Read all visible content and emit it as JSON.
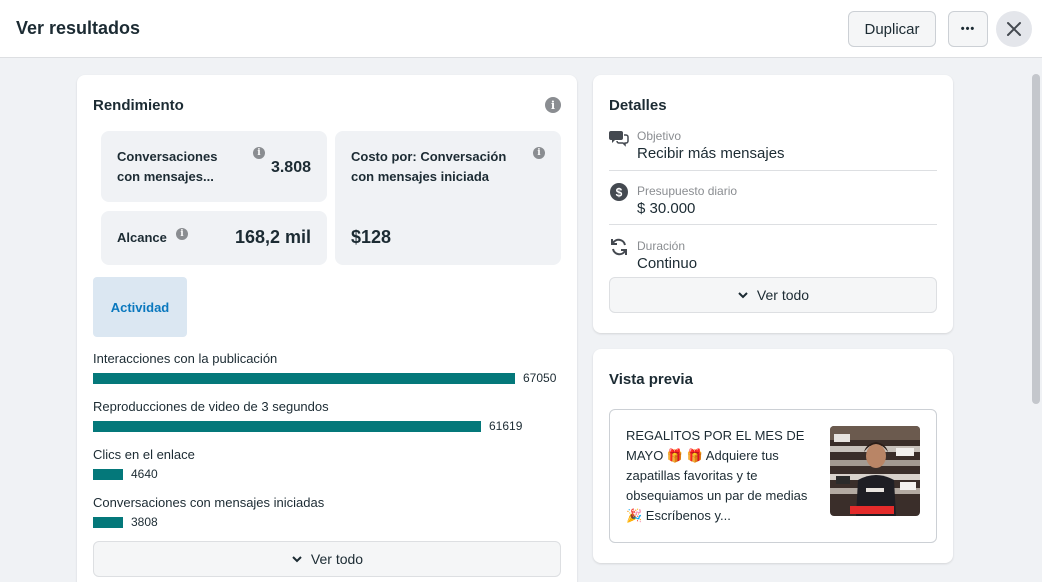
{
  "header": {
    "title": "Ver resultados",
    "duplicate_label": "Duplicar",
    "more_label": "•••"
  },
  "performance": {
    "title": "Rendimiento",
    "metrics": [
      {
        "label": "Conversaciones con mensajes...",
        "value": "3.808"
      },
      {
        "label": "Costo por: Conversación con mensajes iniciada",
        "value": "$128"
      },
      {
        "label": "Alcance",
        "value": "168,2 mil"
      }
    ],
    "tab_label": "Actividad",
    "activity": [
      {
        "label": "Interacciones con la publicación",
        "value": 67050
      },
      {
        "label": "Reproducciones de video de 3 segundos",
        "value": 61619
      },
      {
        "label": "Clics en el enlace",
        "value": 4640
      },
      {
        "label": "Conversaciones con mensajes iniciadas",
        "value": 3808
      }
    ],
    "ver_todo": "Ver todo"
  },
  "details": {
    "title": "Detalles",
    "items": [
      {
        "label": "Objetivo",
        "value": "Recibir más mensajes",
        "icon": "chat-bubbles-icon"
      },
      {
        "label": "Presupuesto diario",
        "value": "$ 30.000",
        "icon": "dollar-circle-icon"
      },
      {
        "label": "Duración",
        "value": "Continuo",
        "icon": "refresh-icon"
      }
    ],
    "ver_todo": "Ver todo"
  },
  "preview": {
    "title": "Vista previa",
    "text": "REGALITOS POR EL MES DE MAYO 🎁 🎁 Adquiere tus zapatillas favoritas y te obsequiamos un par de medias🎉 Escríbenos y..."
  },
  "colors": {
    "bar": "#04787a",
    "accent": "#0a78be",
    "tab_bg": "#dbe7f2"
  }
}
